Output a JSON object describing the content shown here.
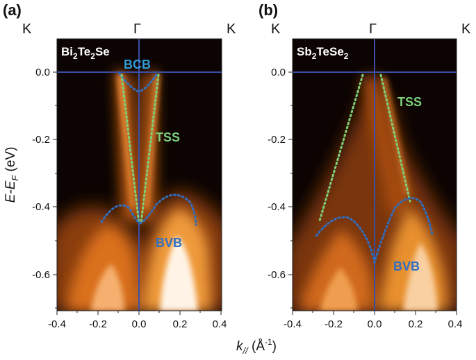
{
  "figure": {
    "panels": [
      {
        "label": "(a)",
        "material": {
          "base1": "Bi",
          "sub1": "2",
          "base2": "Te",
          "sub2": "2",
          "base3": "Se"
        },
        "k_labels": {
          "left": "K",
          "center": "Γ",
          "right": "K"
        },
        "band_labels": {
          "bcb": "BCB",
          "tss": "TSS",
          "bvb": "BVB"
        }
      },
      {
        "label": "(b)",
        "material": {
          "base1": "Sb",
          "sub1": "2",
          "base2": "TeSe",
          "sub2": "2"
        },
        "k_labels": {
          "left": "K",
          "center": "Γ",
          "right": "K"
        },
        "band_labels": {
          "tss": "TSS",
          "bvb": "BVB"
        }
      }
    ],
    "y_ticks": [
      "0.0",
      "-0.2",
      "-0.4",
      "-0.6"
    ],
    "x_ticks": [
      "-0.4",
      "-0.2",
      "0.0",
      "0.2",
      "0.4"
    ],
    "y_axis_title": {
      "main": "E-E",
      "sub": "F",
      "unit": " (eV)"
    },
    "x_axis_title": {
      "main": "k",
      "sub": "//",
      "unit_open": " (Å",
      "unit_sup": "-1",
      "unit_close": ")"
    },
    "colors": {
      "bcb_label": "#2e9bd6",
      "tss_label": "#7ed07a",
      "bvb_label": "#2e6fc4",
      "guide_line": "#3b4fa8"
    }
  }
}
